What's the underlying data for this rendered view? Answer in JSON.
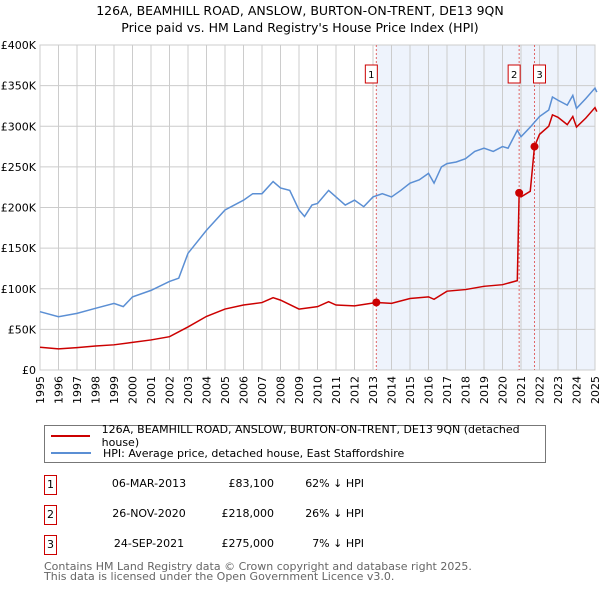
{
  "title": "126A, BEAMHILL ROAD, ANSLOW, BURTON-ON-TRENT, DE13 9QN",
  "subtitle": "Price paid vs. HM Land Registry's House Price Index (HPI)",
  "chart_data": {
    "type": "line",
    "title": "126A, BEAMHILL ROAD, ANSLOW, BURTON-ON-TRENT, DE13 9QN",
    "subtitle": "Price paid vs. HM Land Registry's House Price Index (HPI)",
    "xlim": [
      1995,
      2025
    ],
    "ylim": [
      0,
      400000
    ],
    "x_ticks": [
      "1995",
      "1996",
      "1997",
      "1998",
      "1999",
      "2000",
      "2001",
      "2002",
      "2003",
      "2004",
      "2005",
      "2006",
      "2007",
      "2008",
      "2009",
      "2010",
      "2011",
      "2012",
      "2013",
      "2014",
      "2015",
      "2016",
      "2017",
      "2018",
      "2019",
      "2020",
      "2021",
      "2022",
      "2023",
      "2024",
      "2025"
    ],
    "y_ticks": [
      {
        "v": 0,
        "l": "£0"
      },
      {
        "v": 50000,
        "l": "£50K"
      },
      {
        "v": 100000,
        "l": "£100K"
      },
      {
        "v": 150000,
        "l": "£150K"
      },
      {
        "v": 200000,
        "l": "£200K"
      },
      {
        "v": 250000,
        "l": "£250K"
      },
      {
        "v": 300000,
        "l": "£300K"
      },
      {
        "v": 350000,
        "l": "£350K"
      },
      {
        "v": 400000,
        "l": "£400K"
      }
    ],
    "grid": true,
    "legend_position": "below",
    "series": [
      {
        "name": "126A, BEAMHILL ROAD, ANSLOW, BURTON-ON-TRENT, DE13 9QN (detached house)",
        "color": "#cc0000",
        "x": [
          1995,
          1996,
          1997,
          1998,
          1999,
          2000,
          2001,
          2002,
          2003,
          2004,
          2005,
          2006,
          2007,
          2007.6,
          2008,
          2009,
          2010,
          2010.6,
          2011,
          2012,
          2013.18,
          2014,
          2015,
          2016,
          2016.3,
          2017,
          2018,
          2019,
          2020,
          2020.8,
          2020.9,
          2021,
          2021.5,
          2021.73,
          2022,
          2022.5,
          2022.7,
          2023,
          2023.5,
          2023.8,
          2024,
          2024.5,
          2025,
          2025.1
        ],
        "y": [
          28000,
          26000,
          27500,
          29500,
          31000,
          34000,
          37000,
          41000,
          53000,
          66000,
          75000,
          80000,
          83000,
          89000,
          86000,
          75000,
          78000,
          84000,
          80000,
          79000,
          83100,
          82000,
          88000,
          90000,
          87000,
          97000,
          99000,
          103000,
          105000,
          110000,
          218000,
          213000,
          220000,
          275000,
          290000,
          300000,
          314000,
          311000,
          302000,
          312000,
          299000,
          310000,
          323000,
          318000
        ]
      },
      {
        "name": "HPI: Average price, detached house, East Staffordshire",
        "color": "#5b8fd4",
        "x": [
          1995,
          1996,
          1997,
          1998,
          1999,
          1999.5,
          2000,
          2001,
          2002,
          2002.5,
          2003,
          2004,
          2005,
          2006,
          2006.5,
          2007,
          2007.6,
          2008,
          2008.5,
          2009,
          2009.3,
          2009.7,
          2010,
          2010.6,
          2011,
          2011.5,
          2012,
          2012.5,
          2013,
          2013.5,
          2014,
          2014.5,
          2015,
          2015.5,
          2016,
          2016.3,
          2016.7,
          2017,
          2017.5,
          2018,
          2018.5,
          2019,
          2019.5,
          2020,
          2020.3,
          2020.8,
          2021,
          2021.5,
          2022,
          2022.5,
          2022.7,
          2023,
          2023.5,
          2023.8,
          2024,
          2024.5,
          2025,
          2025.1
        ],
        "y": [
          71800,
          65600,
          69700,
          75900,
          82000,
          78000,
          90000,
          98000,
          109000,
          113000,
          143600,
          172000,
          197000,
          209000,
          217000,
          217000,
          232000,
          224000,
          221000,
          197000,
          189000,
          203000,
          205000,
          221000,
          213000,
          203000,
          209000,
          201000,
          213000,
          217000,
          213000,
          221000,
          230000,
          234000,
          242000,
          230000,
          250000,
          254000,
          256000,
          260000,
          269000,
          273000,
          269000,
          275000,
          273000,
          295000,
          287000,
          299000,
          312000,
          320000,
          336000,
          332000,
          326000,
          338000,
          322000,
          334000,
          347000,
          342000
        ]
      }
    ],
    "transactions": [
      {
        "n": "1",
        "x": 2013.18,
        "date": "06-MAR-2013",
        "price": "£83,100",
        "hpi": "62% ↓ HPI",
        "value": 83100
      },
      {
        "n": "2",
        "x": 2020.9,
        "date": "26-NOV-2020",
        "price": "£218,000",
        "hpi": "26% ↓ HPI",
        "value": 218000
      },
      {
        "n": "3",
        "x": 2021.73,
        "date": "24-SEP-2021",
        "price": "£275,000",
        "hpi": "7% ↓ HPI",
        "value": 275000
      }
    ],
    "shaded_from": 2013.18
  },
  "footer": [
    "Contains HM Land Registry data © Crown copyright and database right 2025.",
    "This data is licensed under the Open Government Licence v3.0."
  ]
}
